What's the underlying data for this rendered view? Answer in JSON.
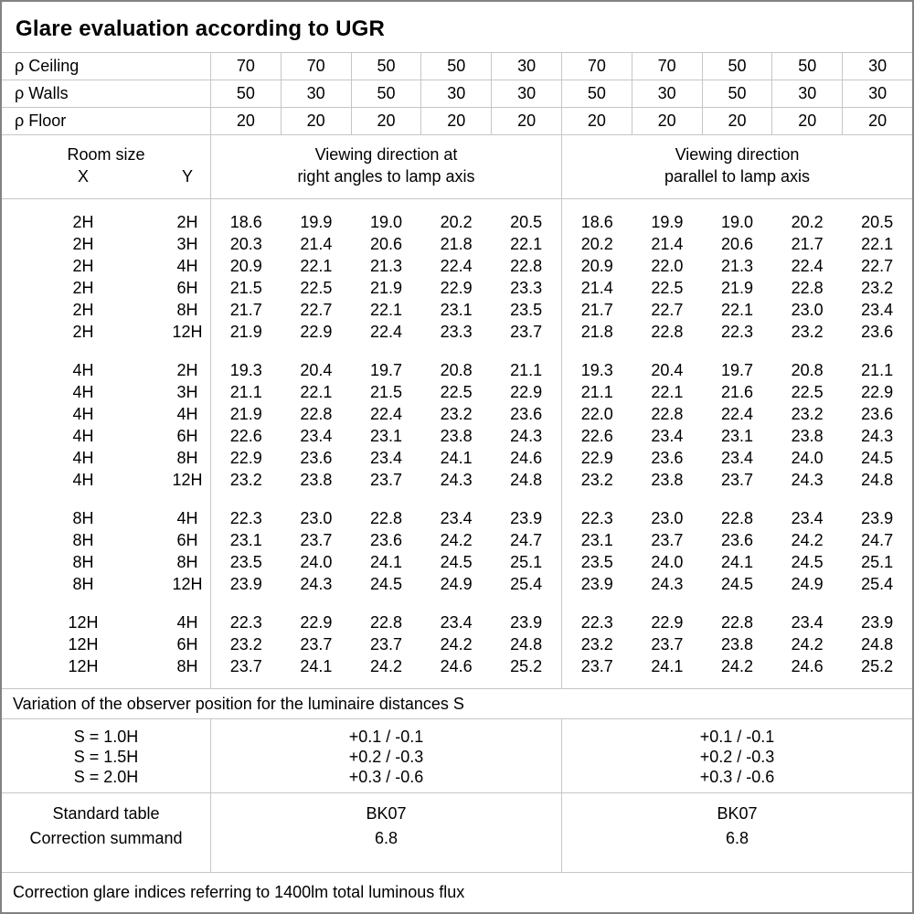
{
  "title": "Glare evaluation according to UGR",
  "reflectance": [
    {
      "label": "ρ Ceiling",
      "values": [
        "70",
        "70",
        "50",
        "50",
        "30",
        "70",
        "70",
        "50",
        "50",
        "30"
      ]
    },
    {
      "label": "ρ Walls",
      "values": [
        "50",
        "30",
        "50",
        "30",
        "30",
        "50",
        "30",
        "50",
        "30",
        "30"
      ]
    },
    {
      "label": "ρ Floor",
      "values": [
        "20",
        "20",
        "20",
        "20",
        "20",
        "20",
        "20",
        "20",
        "20",
        "20"
      ]
    }
  ],
  "header": {
    "room_size_label": "Room size",
    "x_label": "X",
    "y_label": "Y",
    "group_right_angles_line1": "Viewing direction at",
    "group_right_angles_line2": "right angles to lamp axis",
    "group_parallel_line1": "Viewing direction",
    "group_parallel_line2": "parallel to lamp axis"
  },
  "room_blocks": [
    [
      {
        "x": "2H",
        "y": "2H",
        "right_angles": [
          "18.6",
          "19.9",
          "19.0",
          "20.2",
          "20.5"
        ],
        "parallel": [
          "18.6",
          "19.9",
          "19.0",
          "20.2",
          "20.5"
        ]
      },
      {
        "x": "2H",
        "y": "3H",
        "right_angles": [
          "20.3",
          "21.4",
          "20.6",
          "21.8",
          "22.1"
        ],
        "parallel": [
          "20.2",
          "21.4",
          "20.6",
          "21.7",
          "22.1"
        ]
      },
      {
        "x": "2H",
        "y": "4H",
        "right_angles": [
          "20.9",
          "22.1",
          "21.3",
          "22.4",
          "22.8"
        ],
        "parallel": [
          "20.9",
          "22.0",
          "21.3",
          "22.4",
          "22.7"
        ]
      },
      {
        "x": "2H",
        "y": "6H",
        "right_angles": [
          "21.5",
          "22.5",
          "21.9",
          "22.9",
          "23.3"
        ],
        "parallel": [
          "21.4",
          "22.5",
          "21.9",
          "22.8",
          "23.2"
        ]
      },
      {
        "x": "2H",
        "y": "8H",
        "right_angles": [
          "21.7",
          "22.7",
          "22.1",
          "23.1",
          "23.5"
        ],
        "parallel": [
          "21.7",
          "22.7",
          "22.1",
          "23.0",
          "23.4"
        ]
      },
      {
        "x": "2H",
        "y": "12H",
        "right_angles": [
          "21.9",
          "22.9",
          "22.4",
          "23.3",
          "23.7"
        ],
        "parallel": [
          "21.8",
          "22.8",
          "22.3",
          "23.2",
          "23.6"
        ]
      }
    ],
    [
      {
        "x": "4H",
        "y": "2H",
        "right_angles": [
          "19.3",
          "20.4",
          "19.7",
          "20.8",
          "21.1"
        ],
        "parallel": [
          "19.3",
          "20.4",
          "19.7",
          "20.8",
          "21.1"
        ]
      },
      {
        "x": "4H",
        "y": "3H",
        "right_angles": [
          "21.1",
          "22.1",
          "21.5",
          "22.5",
          "22.9"
        ],
        "parallel": [
          "21.1",
          "22.1",
          "21.6",
          "22.5",
          "22.9"
        ]
      },
      {
        "x": "4H",
        "y": "4H",
        "right_angles": [
          "21.9",
          "22.8",
          "22.4",
          "23.2",
          "23.6"
        ],
        "parallel": [
          "22.0",
          "22.8",
          "22.4",
          "23.2",
          "23.6"
        ]
      },
      {
        "x": "4H",
        "y": "6H",
        "right_angles": [
          "22.6",
          "23.4",
          "23.1",
          "23.8",
          "24.3"
        ],
        "parallel": [
          "22.6",
          "23.4",
          "23.1",
          "23.8",
          "24.3"
        ]
      },
      {
        "x": "4H",
        "y": "8H",
        "right_angles": [
          "22.9",
          "23.6",
          "23.4",
          "24.1",
          "24.6"
        ],
        "parallel": [
          "22.9",
          "23.6",
          "23.4",
          "24.0",
          "24.5"
        ]
      },
      {
        "x": "4H",
        "y": "12H",
        "right_angles": [
          "23.2",
          "23.8",
          "23.7",
          "24.3",
          "24.8"
        ],
        "parallel": [
          "23.2",
          "23.8",
          "23.7",
          "24.3",
          "24.8"
        ]
      }
    ],
    [
      {
        "x": "8H",
        "y": "4H",
        "right_angles": [
          "22.3",
          "23.0",
          "22.8",
          "23.4",
          "23.9"
        ],
        "parallel": [
          "22.3",
          "23.0",
          "22.8",
          "23.4",
          "23.9"
        ]
      },
      {
        "x": "8H",
        "y": "6H",
        "right_angles": [
          "23.1",
          "23.7",
          "23.6",
          "24.2",
          "24.7"
        ],
        "parallel": [
          "23.1",
          "23.7",
          "23.6",
          "24.2",
          "24.7"
        ]
      },
      {
        "x": "8H",
        "y": "8H",
        "right_angles": [
          "23.5",
          "24.0",
          "24.1",
          "24.5",
          "25.1"
        ],
        "parallel": [
          "23.5",
          "24.0",
          "24.1",
          "24.5",
          "25.1"
        ]
      },
      {
        "x": "8H",
        "y": "12H",
        "right_angles": [
          "23.9",
          "24.3",
          "24.5",
          "24.9",
          "25.4"
        ],
        "parallel": [
          "23.9",
          "24.3",
          "24.5",
          "24.9",
          "25.4"
        ]
      }
    ],
    [
      {
        "x": "12H",
        "y": "4H",
        "right_angles": [
          "22.3",
          "22.9",
          "22.8",
          "23.4",
          "23.9"
        ],
        "parallel": [
          "22.3",
          "22.9",
          "22.8",
          "23.4",
          "23.9"
        ]
      },
      {
        "x": "12H",
        "y": "6H",
        "right_angles": [
          "23.2",
          "23.7",
          "23.7",
          "24.2",
          "24.8"
        ],
        "parallel": [
          "23.2",
          "23.7",
          "23.8",
          "24.2",
          "24.8"
        ]
      },
      {
        "x": "12H",
        "y": "8H",
        "right_angles": [
          "23.7",
          "24.1",
          "24.2",
          "24.6",
          "25.2"
        ],
        "parallel": [
          "23.7",
          "24.1",
          "24.2",
          "24.6",
          "25.2"
        ]
      }
    ]
  ],
  "variation_note": "Variation of the observer position for the luminaire distances S",
  "s_section": {
    "labels": [
      "S = 1.0H",
      "S = 1.5H",
      "S = 2.0H"
    ],
    "right_angles": [
      "+0.1 / -0.1",
      "+0.2 / -0.3",
      "+0.3 / -0.6"
    ],
    "parallel": [
      "+0.1 / -0.1",
      "+0.2 / -0.3",
      "+0.3 / -0.6"
    ]
  },
  "standard_section": {
    "labels": [
      "Standard table",
      "Correction summand"
    ],
    "right_angles": [
      "BK07",
      "6.8"
    ],
    "parallel": [
      "BK07",
      "6.8"
    ]
  },
  "footer_note": "Correction glare indices referring to 1400lm total luminous flux",
  "colors": {
    "grid_line": "#c6c6c6",
    "outer_border": "#828282",
    "text": "#000000",
    "background": "#ffffff"
  }
}
